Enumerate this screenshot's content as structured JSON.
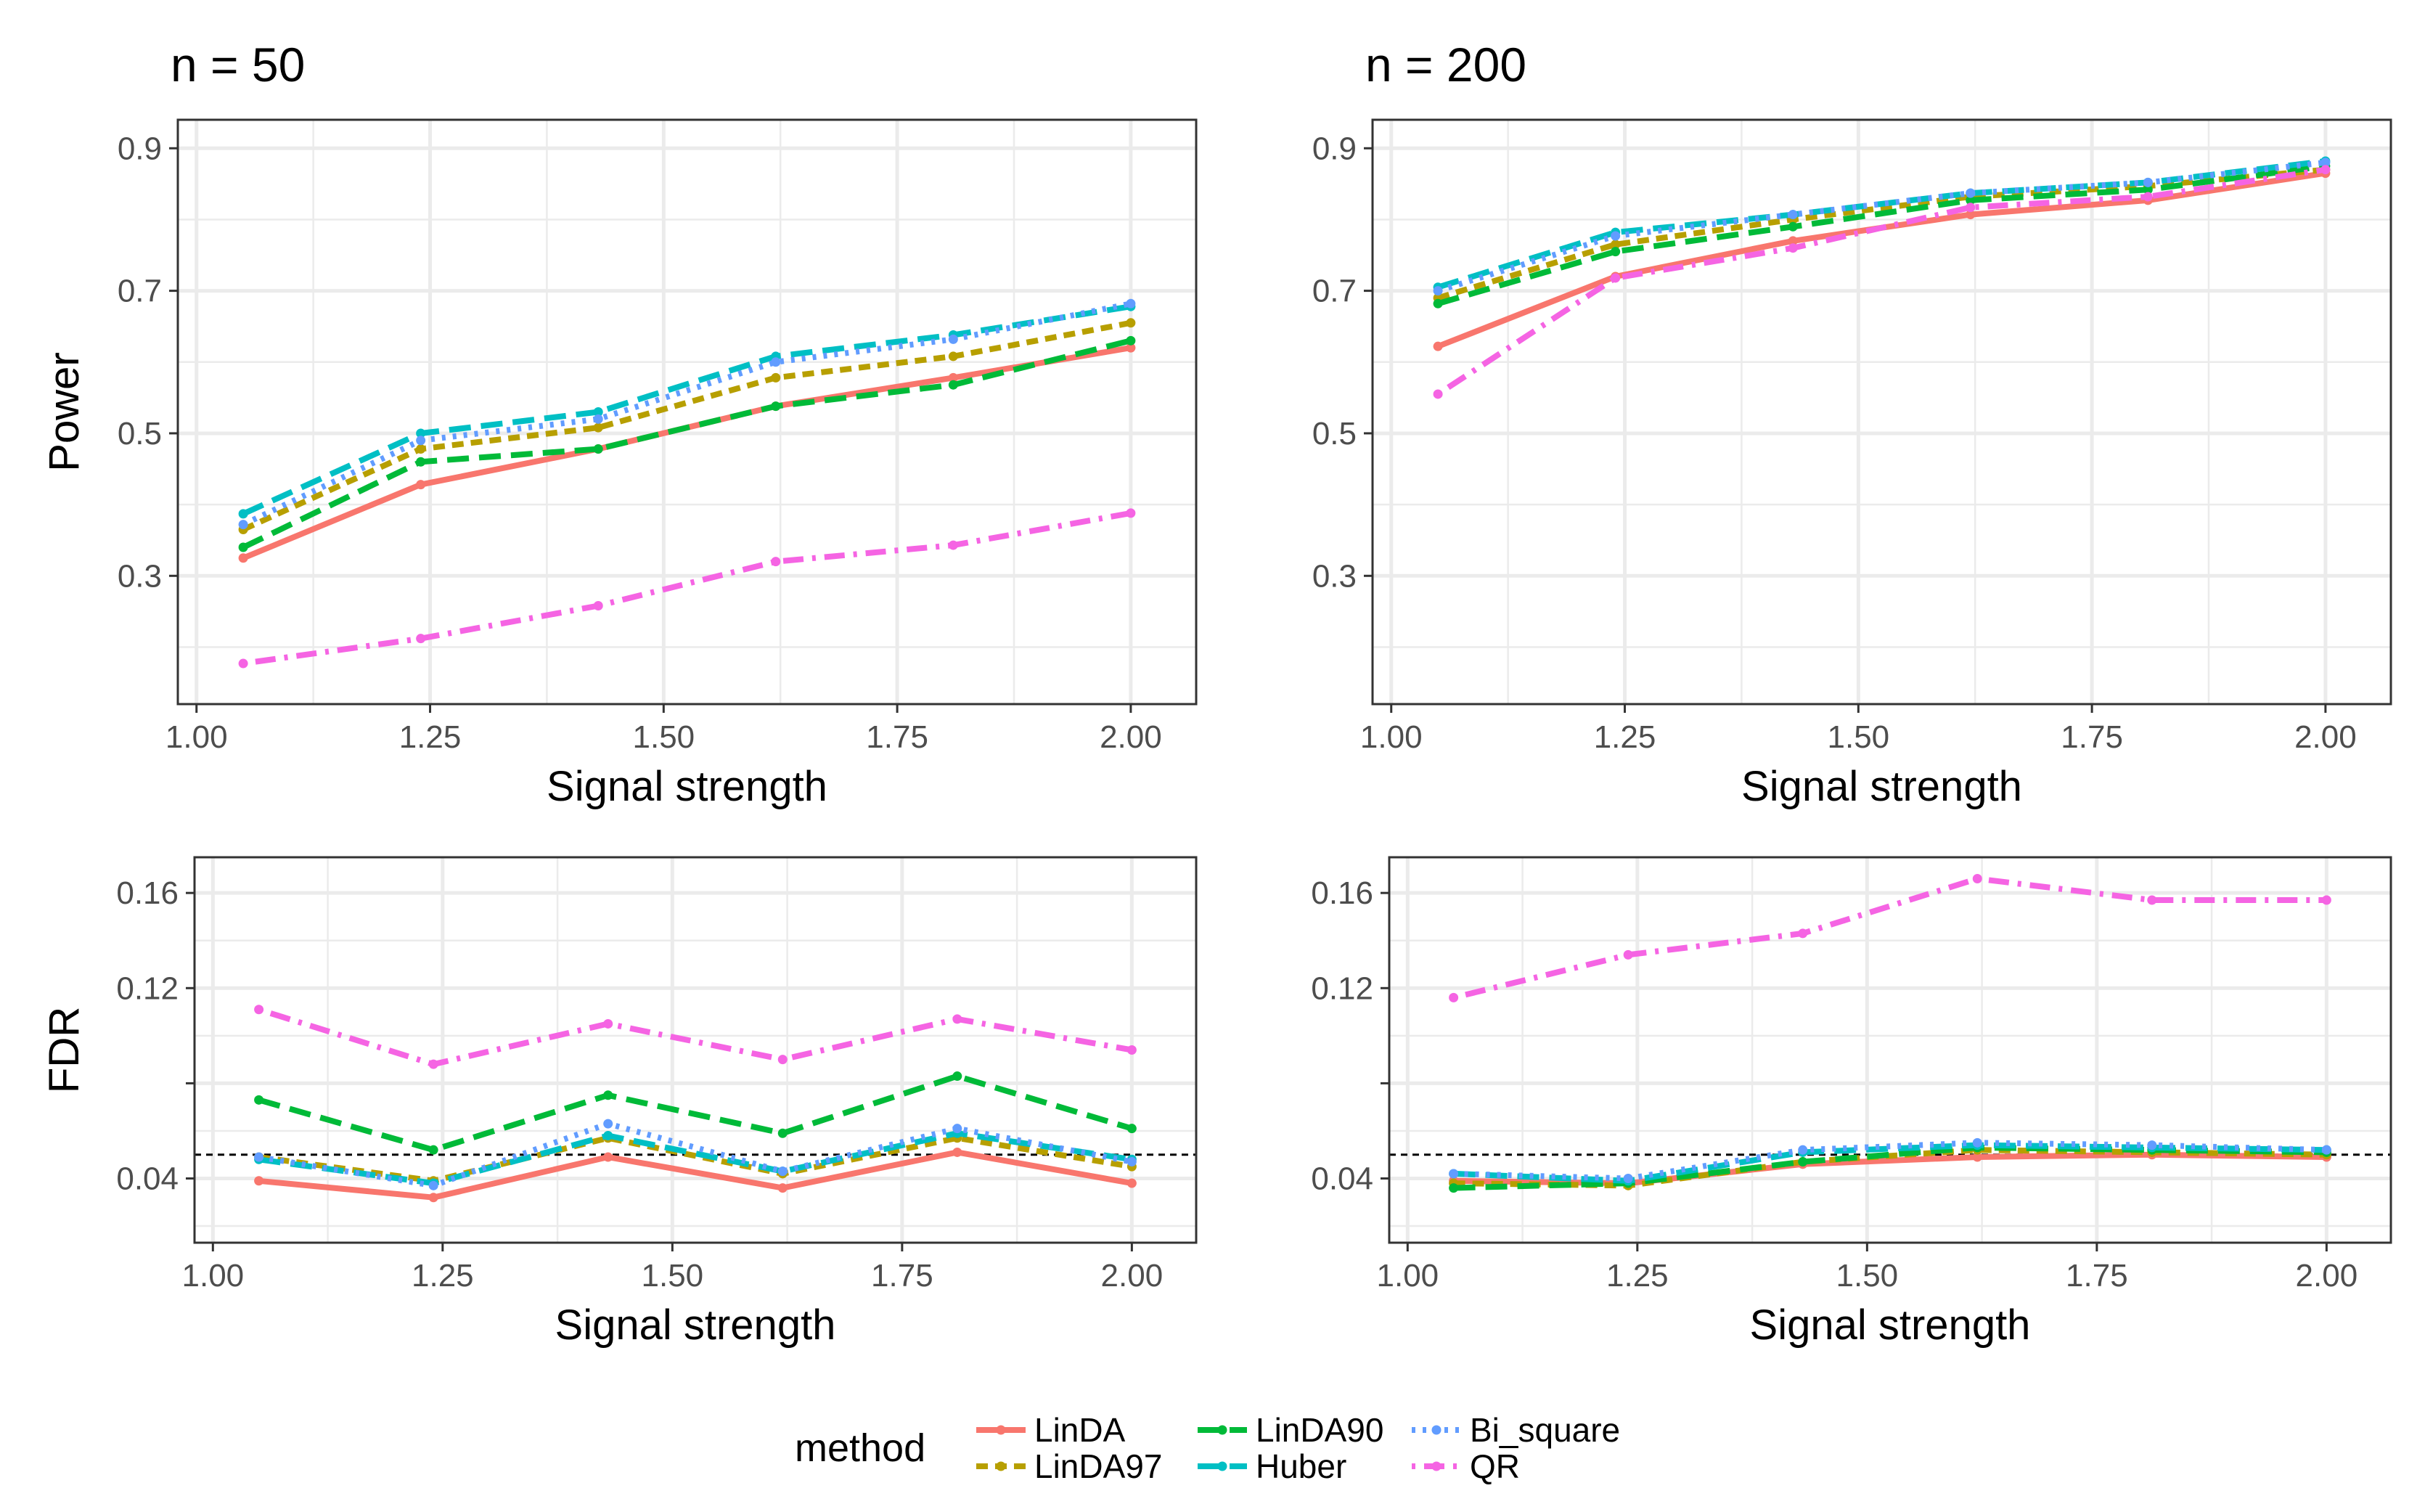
{
  "chart_data": [
    {
      "type": "line",
      "title": "n = 50",
      "xlabel": "Signal strength",
      "ylabel": "Power",
      "xlim": [
        0.98,
        2.07
      ],
      "ylim": [
        0.12,
        0.94
      ],
      "xticks": [
        1.0,
        1.25,
        1.5,
        1.75,
        2.0
      ],
      "xtick_labels": [
        "1.00",
        "1.25",
        "1.50",
        "1.75",
        "2.00"
      ],
      "yticks": [
        0.3,
        0.5,
        0.7,
        0.9
      ],
      "ytick_labels": [
        "0.3",
        "0.5",
        "0.7",
        "0.9"
      ],
      "x": [
        1.05,
        1.24,
        1.43,
        1.62,
        1.81,
        2.0
      ],
      "series": [
        {
          "name": "LinDA",
          "values": [
            0.325,
            0.428,
            0.478,
            0.538,
            0.578,
            0.62
          ]
        },
        {
          "name": "LinDA97",
          "values": [
            0.365,
            0.478,
            0.508,
            0.578,
            0.608,
            0.655
          ]
        },
        {
          "name": "LinDA90",
          "values": [
            0.34,
            0.46,
            0.478,
            0.538,
            0.568,
            0.63
          ]
        },
        {
          "name": "Huber",
          "values": [
            0.387,
            0.5,
            0.53,
            0.608,
            0.638,
            0.678
          ]
        },
        {
          "name": "Bi_square",
          "values": [
            0.372,
            0.49,
            0.52,
            0.6,
            0.632,
            0.682
          ]
        },
        {
          "name": "QR",
          "values": [
            0.177,
            0.212,
            0.258,
            0.32,
            0.343,
            0.388
          ]
        }
      ],
      "grid": true
    },
    {
      "type": "line",
      "title": "n = 200",
      "xlabel": "Signal strength",
      "ylabel": "Power",
      "xlim": [
        0.98,
        2.07
      ],
      "ylim": [
        0.12,
        0.94
      ],
      "xticks": [
        1.0,
        1.25,
        1.5,
        1.75,
        2.0
      ],
      "xtick_labels": [
        "1.00",
        "1.25",
        "1.50",
        "1.75",
        "2.00"
      ],
      "yticks": [
        0.3,
        0.5,
        0.7,
        0.9
      ],
      "ytick_labels": [
        "0.3",
        "0.5",
        "0.7",
        "0.9"
      ],
      "x": [
        1.05,
        1.24,
        1.43,
        1.62,
        1.81,
        2.0
      ],
      "series": [
        {
          "name": "LinDA",
          "values": [
            0.622,
            0.72,
            0.77,
            0.807,
            0.827,
            0.865
          ]
        },
        {
          "name": "LinDA97",
          "values": [
            0.69,
            0.765,
            0.8,
            0.832,
            0.847,
            0.87
          ]
        },
        {
          "name": "LinDA90",
          "values": [
            0.682,
            0.755,
            0.79,
            0.827,
            0.842,
            0.875
          ]
        },
        {
          "name": "Huber",
          "values": [
            0.705,
            0.782,
            0.807,
            0.837,
            0.852,
            0.882
          ]
        },
        {
          "name": "Bi_square",
          "values": [
            0.7,
            0.777,
            0.807,
            0.837,
            0.852,
            0.88
          ]
        },
        {
          "name": "QR",
          "values": [
            0.555,
            0.718,
            0.76,
            0.817,
            0.832,
            0.87
          ]
        }
      ],
      "grid": true
    },
    {
      "type": "line",
      "xlabel": "Signal strength",
      "ylabel": "FDR",
      "xlim": [
        0.98,
        2.07
      ],
      "ylim": [
        0.013,
        0.175
      ],
      "xticks": [
        1.0,
        1.25,
        1.5,
        1.75,
        2.0
      ],
      "xtick_labels": [
        "1.00",
        "1.25",
        "1.50",
        "1.75",
        "2.00"
      ],
      "yticks": [
        0.04,
        0.08,
        0.12,
        0.16
      ],
      "ytick_labels": [
        "0.04",
        "",
        "0.12",
        "0.16"
      ],
      "reference_line": 0.05,
      "x": [
        1.05,
        1.24,
        1.43,
        1.62,
        1.81,
        2.0
      ],
      "series": [
        {
          "name": "LinDA",
          "values": [
            0.039,
            0.032,
            0.049,
            0.036,
            0.051,
            0.038
          ]
        },
        {
          "name": "LinDA97",
          "values": [
            0.049,
            0.039,
            0.057,
            0.042,
            0.057,
            0.045
          ]
        },
        {
          "name": "LinDA90",
          "values": [
            0.073,
            0.052,
            0.075,
            0.059,
            0.083,
            0.061
          ]
        },
        {
          "name": "Huber",
          "values": [
            0.048,
            0.038,
            0.058,
            0.043,
            0.059,
            0.048
          ]
        },
        {
          "name": "Bi_square",
          "values": [
            0.049,
            0.037,
            0.063,
            0.043,
            0.061,
            0.047
          ]
        },
        {
          "name": "QR",
          "values": [
            0.111,
            0.088,
            0.105,
            0.09,
            0.107,
            0.094
          ]
        }
      ],
      "grid": true
    },
    {
      "type": "line",
      "xlabel": "Signal strength",
      "ylabel": "FDR",
      "xlim": [
        0.98,
        2.07
      ],
      "ylim": [
        0.013,
        0.175
      ],
      "xticks": [
        1.0,
        1.25,
        1.5,
        1.75,
        2.0
      ],
      "xtick_labels": [
        "1.00",
        "1.25",
        "1.50",
        "1.75",
        "2.00"
      ],
      "yticks": [
        0.04,
        0.08,
        0.12,
        0.16
      ],
      "ytick_labels": [
        "0.04",
        "",
        "0.12",
        "0.16"
      ],
      "reference_line": 0.05,
      "x": [
        1.05,
        1.24,
        1.43,
        1.62,
        1.81,
        2.0
      ],
      "series": [
        {
          "name": "LinDA",
          "values": [
            0.039,
            0.038,
            0.046,
            0.049,
            0.05,
            0.049
          ]
        },
        {
          "name": "LinDA97",
          "values": [
            0.038,
            0.037,
            0.047,
            0.052,
            0.051,
            0.05
          ]
        },
        {
          "name": "LinDA90",
          "values": [
            0.036,
            0.038,
            0.047,
            0.053,
            0.052,
            0.051
          ]
        },
        {
          "name": "Huber",
          "values": [
            0.042,
            0.039,
            0.051,
            0.054,
            0.053,
            0.052
          ]
        },
        {
          "name": "Bi_square",
          "values": [
            0.042,
            0.04,
            0.052,
            0.055,
            0.054,
            0.052
          ]
        },
        {
          "name": "QR",
          "values": [
            0.116,
            0.134,
            0.143,
            0.166,
            0.157,
            0.157
          ]
        }
      ],
      "grid": true
    }
  ],
  "legend": {
    "title": "method",
    "placement": "bottom",
    "items": [
      {
        "name": "LinDA",
        "color": "#F8766D",
        "dash": "solid"
      },
      {
        "name": "LinDA97",
        "color": "#B79F00",
        "dash": "short-dash"
      },
      {
        "name": "LinDA90",
        "color": "#00BA38",
        "dash": "long-dash"
      },
      {
        "name": "Huber",
        "color": "#00BFC4",
        "dash": "long-dash"
      },
      {
        "name": "Bi_square",
        "color": "#619CFF",
        "dash": "dotted"
      },
      {
        "name": "QR",
        "color": "#F564E3",
        "dash": "dot-dash"
      }
    ]
  }
}
